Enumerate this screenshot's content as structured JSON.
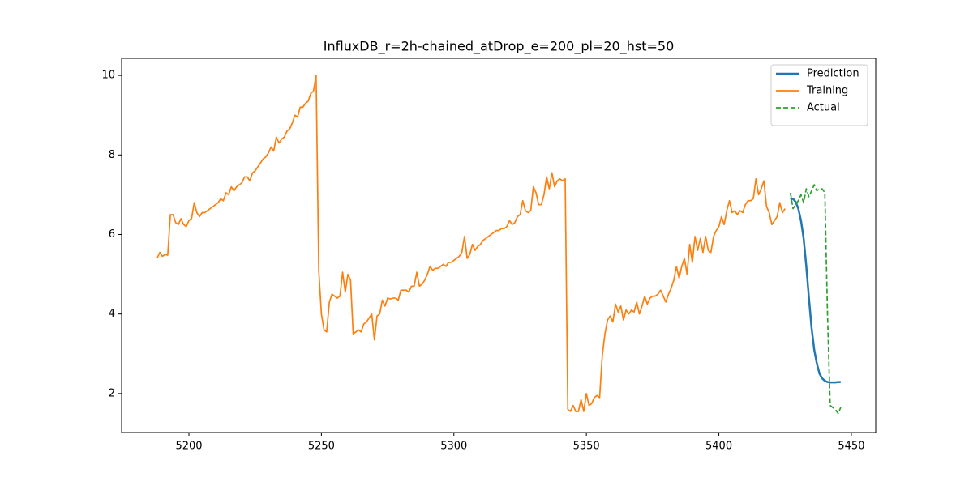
{
  "chart_data": {
    "type": "line",
    "title": "InfluxDB_r=2h-chained_atDrop_e=200_pl=20_hst=50",
    "xlim": [
      5174.6,
      5459.2
    ],
    "xticks": [
      5200,
      5250,
      5300,
      5350,
      5400,
      5450
    ],
    "ylim": [
      1.02,
      10.43
    ],
    "yticks": [
      2,
      4,
      6,
      8,
      10
    ],
    "legend": "upper right",
    "series": [
      {
        "name": "Prediction",
        "color": "#1f77b4",
        "linestyle": "solid",
        "x": [
          5427,
          5428,
          5429,
          5430,
          5431,
          5432,
          5433,
          5434,
          5435,
          5436,
          5437,
          5438,
          5439,
          5440,
          5441,
          5442,
          5443,
          5444,
          5445,
          5446
        ],
        "values": [
          6.88,
          6.9,
          6.82,
          6.65,
          6.35,
          5.9,
          5.2,
          4.4,
          3.65,
          3.1,
          2.75,
          2.5,
          2.38,
          2.32,
          2.29,
          2.28,
          2.28,
          2.28,
          2.29,
          2.29
        ]
      },
      {
        "name": "Training",
        "color": "#ff7f0e",
        "linestyle": "solid",
        "x": [
          5188,
          5189,
          5190,
          5191,
          5192,
          5193,
          5194,
          5195,
          5196,
          5197,
          5198,
          5199,
          5200,
          5201,
          5202,
          5203,
          5204,
          5205,
          5206,
          5207,
          5208,
          5209,
          5210,
          5211,
          5212,
          5213,
          5214,
          5215,
          5216,
          5217,
          5218,
          5219,
          5220,
          5221,
          5222,
          5223,
          5224,
          5225,
          5226,
          5227,
          5228,
          5229,
          5230,
          5231,
          5232,
          5233,
          5234,
          5235,
          5236,
          5237,
          5238,
          5239,
          5240,
          5241,
          5242,
          5243,
          5244,
          5245,
          5246,
          5247,
          5248,
          5249,
          5250,
          5251,
          5252,
          5253,
          5254,
          5255,
          5256,
          5257,
          5258,
          5259,
          5260,
          5261,
          5262,
          5263,
          5264,
          5265,
          5266,
          5267,
          5268,
          5269,
          5270,
          5271,
          5272,
          5273,
          5274,
          5275,
          5276,
          5277,
          5278,
          5279,
          5280,
          5281,
          5282,
          5283,
          5284,
          5285,
          5286,
          5287,
          5288,
          5289,
          5290,
          5291,
          5292,
          5293,
          5294,
          5295,
          5296,
          5297,
          5298,
          5299,
          5300,
          5301,
          5302,
          5303,
          5304,
          5305,
          5306,
          5307,
          5308,
          5309,
          5310,
          5311,
          5312,
          5313,
          5314,
          5315,
          5316,
          5317,
          5318,
          5319,
          5320,
          5321,
          5322,
          5323,
          5324,
          5325,
          5326,
          5327,
          5328,
          5329,
          5330,
          5331,
          5332,
          5333,
          5334,
          5335,
          5336,
          5337,
          5338,
          5339,
          5340,
          5341,
          5342,
          5343,
          5344,
          5345,
          5346,
          5347,
          5348,
          5349,
          5350,
          5351,
          5352,
          5353,
          5354,
          5355,
          5356,
          5357,
          5358,
          5359,
          5360,
          5361,
          5362,
          5363,
          5364,
          5365,
          5366,
          5367,
          5368,
          5369,
          5370,
          5371,
          5372,
          5373,
          5374,
          5375,
          5376,
          5377,
          5378,
          5379,
          5380,
          5381,
          5382,
          5383,
          5384,
          5385,
          5386,
          5387,
          5388,
          5389,
          5390,
          5391,
          5392,
          5393,
          5394,
          5395,
          5396,
          5397,
          5398,
          5399,
          5400,
          5401,
          5402,
          5403,
          5404,
          5405,
          5406,
          5407,
          5408,
          5409,
          5410,
          5411,
          5412,
          5413,
          5414,
          5415,
          5416,
          5417,
          5418,
          5419,
          5420,
          5421,
          5422,
          5423,
          5424,
          5425
        ],
        "values": [
          5.4,
          5.55,
          5.45,
          5.5,
          5.48,
          6.5,
          6.5,
          6.3,
          6.25,
          6.4,
          6.25,
          6.2,
          6.35,
          6.4,
          6.8,
          6.55,
          6.45,
          6.55,
          6.55,
          6.6,
          6.65,
          6.7,
          6.75,
          6.8,
          6.9,
          6.85,
          7.05,
          7.0,
          7.2,
          7.1,
          7.2,
          7.25,
          7.3,
          7.45,
          7.45,
          7.35,
          7.55,
          7.6,
          7.7,
          7.8,
          7.9,
          7.95,
          8.05,
          8.2,
          8.1,
          8.45,
          8.3,
          8.4,
          8.45,
          8.6,
          8.65,
          8.8,
          9.0,
          8.95,
          9.2,
          9.2,
          9.3,
          9.35,
          9.55,
          9.6,
          10.0,
          5.1,
          4.0,
          3.6,
          3.55,
          4.3,
          4.5,
          4.45,
          4.4,
          4.45,
          5.05,
          4.55,
          5.0,
          4.85,
          3.5,
          3.55,
          3.6,
          3.55,
          3.75,
          3.8,
          3.9,
          4.0,
          3.35,
          3.95,
          4.0,
          4.35,
          4.2,
          4.4,
          4.38,
          4.4,
          4.4,
          4.35,
          4.6,
          4.6,
          4.6,
          4.55,
          4.7,
          4.7,
          5.05,
          4.7,
          4.75,
          4.85,
          5.0,
          5.2,
          5.1,
          5.15,
          5.15,
          5.2,
          5.25,
          5.2,
          5.3,
          5.3,
          5.35,
          5.4,
          5.45,
          5.55,
          5.95,
          5.4,
          5.5,
          5.75,
          5.6,
          5.7,
          5.75,
          5.85,
          5.9,
          5.95,
          6.0,
          6.05,
          6.1,
          6.1,
          6.15,
          6.15,
          6.2,
          6.35,
          6.25,
          6.3,
          6.45,
          6.5,
          6.85,
          6.6,
          6.55,
          6.6,
          7.2,
          7.05,
          6.75,
          6.75,
          7.0,
          7.45,
          7.15,
          7.55,
          7.2,
          7.35,
          7.4,
          7.35,
          7.4,
          1.6,
          1.55,
          1.7,
          1.55,
          1.55,
          1.85,
          1.55,
          2.0,
          1.7,
          1.75,
          1.9,
          1.95,
          1.9,
          2.95,
          3.5,
          3.85,
          3.95,
          3.8,
          4.25,
          4.05,
          4.2,
          3.85,
          4.1,
          4.0,
          4.1,
          4.05,
          4.3,
          4.0,
          4.2,
          4.45,
          4.25,
          4.4,
          4.45,
          4.45,
          4.5,
          4.6,
          4.45,
          4.3,
          4.5,
          4.65,
          4.85,
          5.2,
          4.9,
          5.2,
          5.4,
          5.0,
          5.75,
          5.3,
          5.95,
          5.6,
          5.9,
          5.55,
          5.95,
          5.6,
          5.55,
          5.95,
          6.1,
          6.2,
          6.45,
          6.25,
          6.6,
          6.85,
          6.55,
          6.6,
          6.5,
          6.6,
          6.55,
          6.75,
          6.85,
          6.85,
          6.9,
          7.4,
          7.0,
          7.15,
          7.35,
          6.7,
          6.55,
          6.25,
          6.35,
          6.45,
          6.8,
          6.55,
          6.65
        ]
      },
      {
        "name": "Actual",
        "color": "#2ca02c",
        "linestyle": "dashed",
        "x": [
          5427,
          5428,
          5429,
          5430,
          5431,
          5432,
          5433,
          5434,
          5435,
          5436,
          5437,
          5438,
          5439,
          5440,
          5441,
          5442,
          5443,
          5444,
          5445,
          5446
        ],
        "values": [
          7.05,
          6.65,
          6.75,
          6.85,
          7.0,
          6.8,
          7.15,
          6.95,
          7.1,
          7.25,
          7.1,
          7.15,
          7.15,
          7.05,
          4.0,
          1.7,
          1.65,
          1.6,
          1.5,
          1.65
        ]
      }
    ]
  }
}
